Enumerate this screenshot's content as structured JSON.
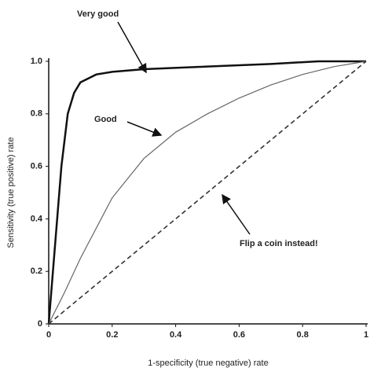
{
  "chart_data": {
    "type": "line",
    "xlabel": "1-specificity (true negative) rate",
    "ylabel": "Sensitivity (true positive) rate",
    "xlim": [
      0,
      1
    ],
    "ylim": [
      0,
      1
    ],
    "xticks": [
      0,
      0.2,
      0.4,
      0.6,
      0.8,
      1
    ],
    "yticks": [
      0,
      0.2,
      0.4,
      0.6,
      0.8,
      {
        "value": 1,
        "label": "1.0"
      }
    ],
    "series": [
      {
        "name": "Very good",
        "color": "#111111",
        "style": "solid",
        "x": [
          0,
          0.02,
          0.04,
          0.06,
          0.08,
          0.1,
          0.15,
          0.2,
          0.3,
          0.5,
          0.7,
          0.85,
          1
        ],
        "values": [
          0,
          0.3,
          0.6,
          0.8,
          0.88,
          0.92,
          0.95,
          0.96,
          0.97,
          0.98,
          0.99,
          1,
          1
        ]
      },
      {
        "name": "Good",
        "color": "#666666",
        "style": "solid",
        "x": [
          0,
          0.05,
          0.1,
          0.2,
          0.3,
          0.4,
          0.5,
          0.6,
          0.7,
          0.8,
          0.9,
          1
        ],
        "values": [
          0,
          0.12,
          0.25,
          0.48,
          0.63,
          0.73,
          0.8,
          0.86,
          0.91,
          0.95,
          0.98,
          1
        ]
      },
      {
        "name": "Flip a coin instead!",
        "color": "#333333",
        "style": "dashed",
        "x": [
          0,
          1
        ],
        "values": [
          0,
          1
        ]
      }
    ]
  }
}
